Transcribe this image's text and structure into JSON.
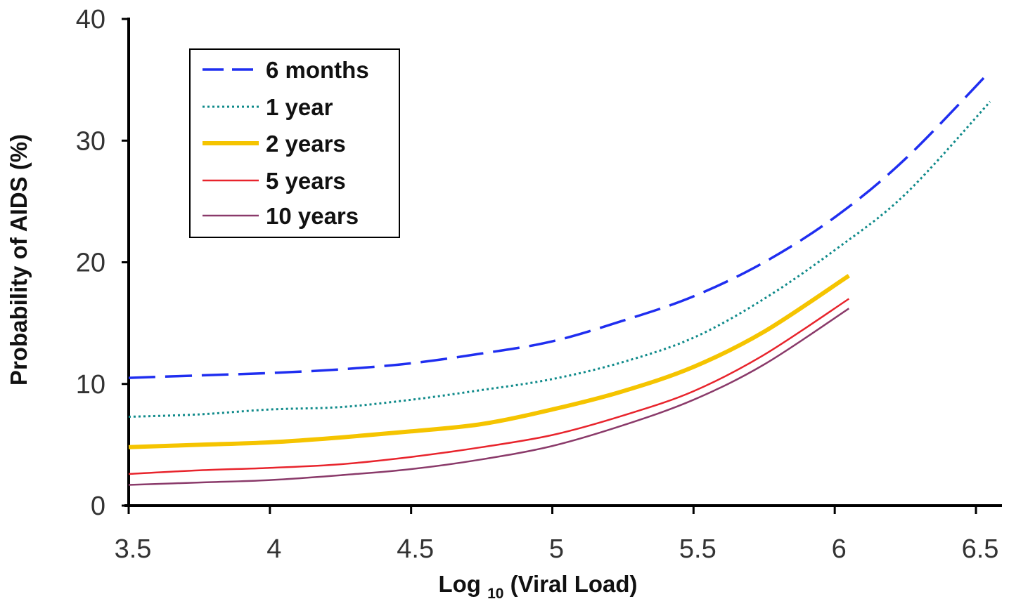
{
  "chart_data": {
    "type": "line",
    "title": "",
    "xlabel": {
      "prefix": "Log",
      "subscript": "10",
      "suffix": " (Viral Load)"
    },
    "ylabel": "Probability of AIDS (%)",
    "xlim": [
      3.5,
      6.5
    ],
    "ylim": [
      0,
      40
    ],
    "x_ticks": [
      "3.5",
      "4",
      "4.5",
      "5",
      "5.5",
      "6",
      "6.5"
    ],
    "y_ticks": [
      "0",
      "10",
      "20",
      "30",
      "40"
    ],
    "grid": false,
    "legend_position": "top-left",
    "series": [
      {
        "name": "6 months",
        "color": "#1f2ef0",
        "style": "dashed",
        "x": [
          3.5,
          3.75,
          4.0,
          4.25,
          4.5,
          4.75,
          5.0,
          5.25,
          5.5,
          5.75,
          6.0,
          6.25,
          6.55
        ],
        "y": [
          10.5,
          10.7,
          10.9,
          11.2,
          11.7,
          12.5,
          13.5,
          15.2,
          17.2,
          20.0,
          23.7,
          28.5,
          35.7
        ]
      },
      {
        "name": "1 year",
        "color": "#0f8a8a",
        "style": "dotted",
        "x": [
          3.5,
          3.75,
          4.0,
          4.25,
          4.5,
          4.75,
          5.0,
          5.25,
          5.5,
          5.75,
          6.0,
          6.25,
          6.55
        ],
        "y": [
          7.3,
          7.5,
          7.9,
          8.1,
          8.7,
          9.5,
          10.4,
          11.8,
          13.8,
          17.0,
          21.0,
          25.6,
          33.2
        ]
      },
      {
        "name": "2 years",
        "color": "#f5c400",
        "style": "thick",
        "x": [
          3.5,
          3.75,
          4.0,
          4.25,
          4.5,
          4.75,
          5.0,
          5.25,
          5.5,
          5.75,
          6.05
        ],
        "y": [
          4.8,
          5.0,
          5.2,
          5.6,
          6.1,
          6.7,
          7.9,
          9.4,
          11.4,
          14.3,
          18.9
        ]
      },
      {
        "name": "5 years",
        "color": "#e8242c",
        "style": "solid",
        "x": [
          3.5,
          3.75,
          4.0,
          4.25,
          4.5,
          4.75,
          5.0,
          5.25,
          5.5,
          5.75,
          6.05
        ],
        "y": [
          2.6,
          2.9,
          3.1,
          3.4,
          4.0,
          4.8,
          5.8,
          7.4,
          9.4,
          12.4,
          17.0
        ]
      },
      {
        "name": "10 years",
        "color": "#8a3a6a",
        "style": "solid",
        "x": [
          3.5,
          3.75,
          4.0,
          4.25,
          4.5,
          4.75,
          5.0,
          5.25,
          5.5,
          5.75,
          6.05
        ],
        "y": [
          1.7,
          1.9,
          2.1,
          2.5,
          3.0,
          3.8,
          4.9,
          6.6,
          8.7,
          11.6,
          16.2
        ]
      }
    ]
  }
}
